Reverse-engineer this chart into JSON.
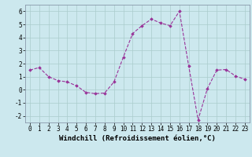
{
  "x": [
    0,
    1,
    2,
    3,
    4,
    5,
    6,
    7,
    8,
    9,
    10,
    11,
    12,
    13,
    14,
    15,
    16,
    17,
    18,
    19,
    20,
    21,
    22,
    23
  ],
  "y": [
    1.5,
    1.7,
    1.0,
    0.7,
    0.6,
    0.3,
    -0.2,
    -0.3,
    -0.25,
    0.6,
    2.5,
    4.3,
    4.9,
    5.4,
    5.1,
    4.9,
    6.0,
    1.8,
    -2.3,
    0.1,
    1.5,
    1.55,
    1.05,
    0.8
  ],
  "line_color": "#993399",
  "marker": "D",
  "marker_size": 1.8,
  "linewidth": 0.8,
  "xlabel": "Windchill (Refroidissement éolien,°C)",
  "xlabel_fontsize": 6.5,
  "ylim": [
    -2.5,
    6.5
  ],
  "xlim": [
    -0.5,
    23.5
  ],
  "yticks": [
    -2,
    -1,
    0,
    1,
    2,
    3,
    4,
    5,
    6
  ],
  "xticks": [
    0,
    1,
    2,
    3,
    4,
    5,
    6,
    7,
    8,
    9,
    10,
    11,
    12,
    13,
    14,
    15,
    16,
    17,
    18,
    19,
    20,
    21,
    22,
    23
  ],
  "tick_fontsize": 5.5,
  "bg_color": "#cce8ee",
  "grid_color": "#aacccc",
  "line_style": "--",
  "spine_color": "#8899aa"
}
